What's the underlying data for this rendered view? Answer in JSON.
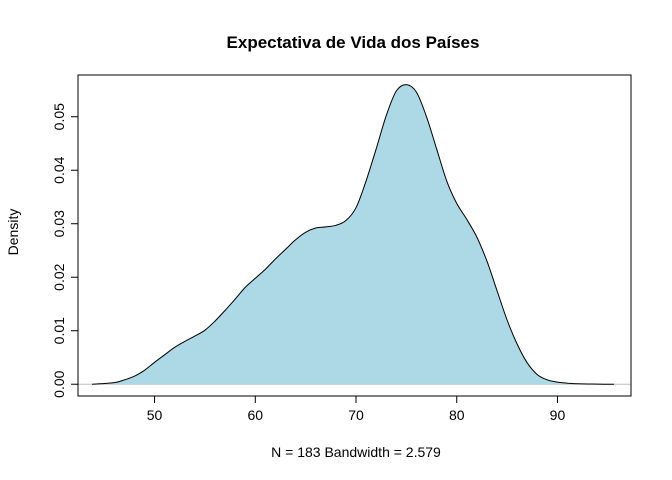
{
  "chart_data": {
    "type": "area",
    "title": "Expectativa de Vida dos Países",
    "xlabel": "N = 183   Bandwidth = 2.579",
    "ylabel": "Density",
    "xlim": [
      42.4,
      97.3
    ],
    "ylim": [
      -0.0022,
      0.0578
    ],
    "x_ticks": [
      50,
      60,
      70,
      80,
      90
    ],
    "x_tick_labels": [
      "50",
      "60",
      "70",
      "80",
      "90"
    ],
    "y_ticks": [
      0,
      0.01,
      0.02,
      0.03,
      0.04,
      0.05
    ],
    "y_tick_labels": [
      "0.00",
      "0.01",
      "0.02",
      "0.03",
      "0.04",
      "0.05"
    ],
    "grid": false,
    "fill_color": "#ADD8E6",
    "line_color": "#000000",
    "baseline_color": "#BEBEBE",
    "x": [
      43.8,
      46,
      47,
      48,
      49,
      50,
      51,
      52,
      53,
      54,
      55,
      56,
      57,
      58,
      59,
      60,
      61,
      62,
      63,
      64,
      65,
      66,
      67,
      68,
      69,
      70,
      71,
      72,
      73,
      74,
      75,
      76,
      77,
      78,
      79,
      80,
      81,
      82,
      83,
      84,
      85,
      86,
      87,
      88,
      89,
      90,
      91,
      92,
      93,
      94,
      95.6
    ],
    "y": [
      0.0,
      0.0003,
      0.0008,
      0.0015,
      0.0026,
      0.0041,
      0.0055,
      0.0069,
      0.008,
      0.009,
      0.0101,
      0.0118,
      0.0138,
      0.0159,
      0.0181,
      0.0198,
      0.0215,
      0.0234,
      0.0252,
      0.027,
      0.0284,
      0.0292,
      0.0294,
      0.0297,
      0.0306,
      0.033,
      0.038,
      0.044,
      0.0502,
      0.0548,
      0.056,
      0.0546,
      0.05,
      0.044,
      0.038,
      0.0338,
      0.0308,
      0.0275,
      0.023,
      0.0175,
      0.012,
      0.0075,
      0.004,
      0.0018,
      0.0008,
      0.0004,
      0.0002,
      0.0001,
      5e-05,
      2e-05,
      0.0
    ]
  }
}
